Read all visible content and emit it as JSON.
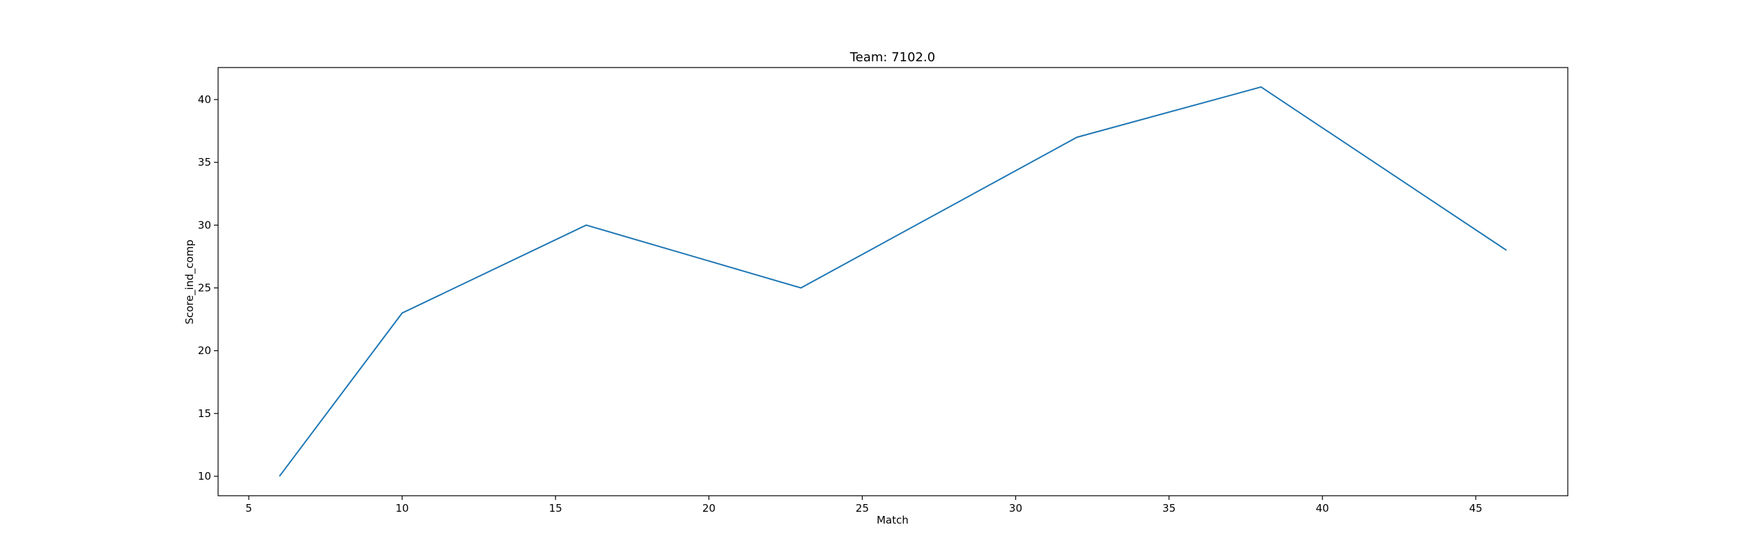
{
  "chart_data": {
    "type": "line",
    "title": "Team: 7102.0",
    "xlabel": "Match",
    "ylabel": "Score_ind_comp",
    "xlim": [
      4.0,
      48.0
    ],
    "ylim": [
      8.45,
      42.55
    ],
    "xticks": [
      5,
      10,
      15,
      20,
      25,
      30,
      35,
      40,
      45
    ],
    "yticks": [
      10,
      15,
      20,
      25,
      30,
      35,
      40
    ],
    "grid": false,
    "series": [
      {
        "color": "#1f77b4",
        "x": [
          6,
          10,
          16,
          23,
          32,
          38,
          46
        ],
        "y": [
          10,
          23,
          30,
          25,
          37,
          41,
          28
        ]
      }
    ]
  }
}
